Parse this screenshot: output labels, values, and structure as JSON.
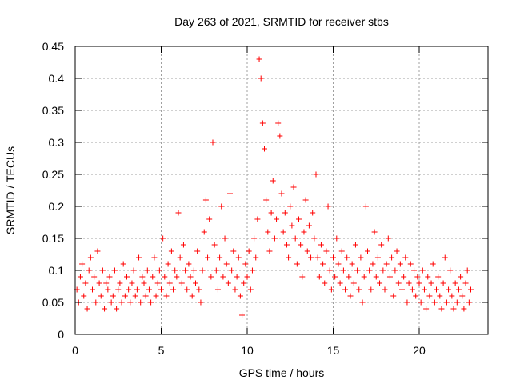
{
  "chart_data": {
    "type": "scatter",
    "title": "Day 263 of 2021, SRMTID for receiver stbs",
    "xlabel": "GPS time / hours",
    "ylabel": "SRMTID / TECUs",
    "xlim": [
      0,
      24
    ],
    "ylim": [
      0,
      0.45
    ],
    "xticks": [
      0,
      5,
      10,
      15,
      20
    ],
    "xtick_labels": [
      "0",
      "5",
      "10",
      "15",
      "20"
    ],
    "yticks": [
      0,
      0.05,
      0.1,
      0.15,
      0.2,
      0.25,
      0.3,
      0.35,
      0.4,
      0.45
    ],
    "ytick_labels": [
      "0",
      "0.05",
      "0.1",
      "0.15",
      "0.2",
      "0.25",
      "0.3",
      "0.35",
      "0.4",
      "0.45"
    ],
    "grid": true,
    "marker": "+",
    "color": "#ff0000",
    "series": [
      {
        "name": "SRMTID",
        "points": [
          [
            0.1,
            0.07
          ],
          [
            0.2,
            0.05
          ],
          [
            0.3,
            0.09
          ],
          [
            0.4,
            0.11
          ],
          [
            0.5,
            0.06
          ],
          [
            0.6,
            0.08
          ],
          [
            0.7,
            0.04
          ],
          [
            0.8,
            0.1
          ],
          [
            0.9,
            0.12
          ],
          [
            1.0,
            0.07
          ],
          [
            1.1,
            0.09
          ],
          [
            1.2,
            0.05
          ],
          [
            1.3,
            0.13
          ],
          [
            1.4,
            0.08
          ],
          [
            1.5,
            0.06
          ],
          [
            1.6,
            0.1
          ],
          [
            1.7,
            0.04
          ],
          [
            1.8,
            0.08
          ],
          [
            1.9,
            0.07
          ],
          [
            2.0,
            0.09
          ],
          [
            2.1,
            0.05
          ],
          [
            2.2,
            0.06
          ],
          [
            2.3,
            0.1
          ],
          [
            2.4,
            0.04
          ],
          [
            2.5,
            0.07
          ],
          [
            2.6,
            0.08
          ],
          [
            2.7,
            0.05
          ],
          [
            2.8,
            0.11
          ],
          [
            2.9,
            0.06
          ],
          [
            3.0,
            0.09
          ],
          [
            3.1,
            0.07
          ],
          [
            3.2,
            0.05
          ],
          [
            3.3,
            0.08
          ],
          [
            3.4,
            0.1
          ],
          [
            3.5,
            0.06
          ],
          [
            3.6,
            0.07
          ],
          [
            3.7,
            0.12
          ],
          [
            3.8,
            0.05
          ],
          [
            3.9,
            0.09
          ],
          [
            4.0,
            0.08
          ],
          [
            4.1,
            0.06
          ],
          [
            4.2,
            0.1
          ],
          [
            4.3,
            0.07
          ],
          [
            4.4,
            0.05
          ],
          [
            4.5,
            0.09
          ],
          [
            4.6,
            0.12
          ],
          [
            4.7,
            0.06
          ],
          [
            4.8,
            0.08
          ],
          [
            4.9,
            0.1
          ],
          [
            5.0,
            0.07
          ],
          [
            5.1,
            0.15
          ],
          [
            5.2,
            0.09
          ],
          [
            5.3,
            0.06
          ],
          [
            5.4,
            0.11
          ],
          [
            5.5,
            0.08
          ],
          [
            5.6,
            0.13
          ],
          [
            5.7,
            0.07
          ],
          [
            5.8,
            0.1
          ],
          [
            5.9,
            0.09
          ],
          [
            6.0,
            0.19
          ],
          [
            6.1,
            0.12
          ],
          [
            6.2,
            0.08
          ],
          [
            6.3,
            0.14
          ],
          [
            6.4,
            0.1
          ],
          [
            6.5,
            0.07
          ],
          [
            6.6,
            0.11
          ],
          [
            6.7,
            0.09
          ],
          [
            6.8,
            0.06
          ],
          [
            6.9,
            0.1
          ],
          [
            7.0,
            0.08
          ],
          [
            7.1,
            0.13
          ],
          [
            7.2,
            0.07
          ],
          [
            7.3,
            0.05
          ],
          [
            7.4,
            0.1
          ],
          [
            7.5,
            0.16
          ],
          [
            7.6,
            0.21
          ],
          [
            7.7,
            0.12
          ],
          [
            7.8,
            0.18
          ],
          [
            7.9,
            0.09
          ],
          [
            8.0,
            0.3
          ],
          [
            8.1,
            0.14
          ],
          [
            8.2,
            0.1
          ],
          [
            8.3,
            0.07
          ],
          [
            8.4,
            0.12
          ],
          [
            8.5,
            0.2
          ],
          [
            8.6,
            0.09
          ],
          [
            8.7,
            0.15
          ],
          [
            8.8,
            0.11
          ],
          [
            8.9,
            0.08
          ],
          [
            9.0,
            0.22
          ],
          [
            9.1,
            0.1
          ],
          [
            9.2,
            0.13
          ],
          [
            9.3,
            0.07
          ],
          [
            9.4,
            0.09
          ],
          [
            9.5,
            0.12
          ],
          [
            9.6,
            0.06
          ],
          [
            9.7,
            0.03
          ],
          [
            9.8,
            0.08
          ],
          [
            9.9,
            0.11
          ],
          [
            10.0,
            0.09
          ],
          [
            10.1,
            0.13
          ],
          [
            10.2,
            0.07
          ],
          [
            10.3,
            0.1
          ],
          [
            10.4,
            0.15
          ],
          [
            10.5,
            0.12
          ],
          [
            10.6,
            0.18
          ],
          [
            10.7,
            0.43
          ],
          [
            10.8,
            0.4
          ],
          [
            10.9,
            0.33
          ],
          [
            11.0,
            0.29
          ],
          [
            11.1,
            0.21
          ],
          [
            11.2,
            0.16
          ],
          [
            11.3,
            0.13
          ],
          [
            11.4,
            0.19
          ],
          [
            11.5,
            0.24
          ],
          [
            11.6,
            0.15
          ],
          [
            11.7,
            0.18
          ],
          [
            11.8,
            0.33
          ],
          [
            11.9,
            0.31
          ],
          [
            12.0,
            0.22
          ],
          [
            12.1,
            0.16
          ],
          [
            12.2,
            0.19
          ],
          [
            12.3,
            0.14
          ],
          [
            12.4,
            0.12
          ],
          [
            12.5,
            0.2
          ],
          [
            12.6,
            0.17
          ],
          [
            12.7,
            0.23
          ],
          [
            12.8,
            0.15
          ],
          [
            12.9,
            0.11
          ],
          [
            13.0,
            0.18
          ],
          [
            13.1,
            0.14
          ],
          [
            13.2,
            0.09
          ],
          [
            13.3,
            0.16
          ],
          [
            13.4,
            0.21
          ],
          [
            13.5,
            0.13
          ],
          [
            13.6,
            0.17
          ],
          [
            13.7,
            0.12
          ],
          [
            13.8,
            0.19
          ],
          [
            13.9,
            0.15
          ],
          [
            14.0,
            0.25
          ],
          [
            14.1,
            0.12
          ],
          [
            14.2,
            0.09
          ],
          [
            14.3,
            0.14
          ],
          [
            14.4,
            0.11
          ],
          [
            14.5,
            0.08
          ],
          [
            14.6,
            0.13
          ],
          [
            14.7,
            0.2
          ],
          [
            14.8,
            0.1
          ],
          [
            14.9,
            0.07
          ],
          [
            15.0,
            0.12
          ],
          [
            15.1,
            0.09
          ],
          [
            15.2,
            0.15
          ],
          [
            15.3,
            0.11
          ],
          [
            15.4,
            0.08
          ],
          [
            15.5,
            0.13
          ],
          [
            15.6,
            0.1
          ],
          [
            15.7,
            0.07
          ],
          [
            15.8,
            0.12
          ],
          [
            15.9,
            0.09
          ],
          [
            16.0,
            0.06
          ],
          [
            16.1,
            0.11
          ],
          [
            16.2,
            0.08
          ],
          [
            16.3,
            0.14
          ],
          [
            16.4,
            0.1
          ],
          [
            16.5,
            0.07
          ],
          [
            16.6,
            0.12
          ],
          [
            16.7,
            0.05
          ],
          [
            16.8,
            0.09
          ],
          [
            16.9,
            0.2
          ],
          [
            17.0,
            0.13
          ],
          [
            17.1,
            0.1
          ],
          [
            17.2,
            0.07
          ],
          [
            17.3,
            0.11
          ],
          [
            17.4,
            0.16
          ],
          [
            17.5,
            0.09
          ],
          [
            17.6,
            0.12
          ],
          [
            17.7,
            0.08
          ],
          [
            17.8,
            0.14
          ],
          [
            17.9,
            0.1
          ],
          [
            18.0,
            0.07
          ],
          [
            18.1,
            0.11
          ],
          [
            18.2,
            0.15
          ],
          [
            18.3,
            0.09
          ],
          [
            18.4,
            0.12
          ],
          [
            18.5,
            0.06
          ],
          [
            18.6,
            0.1
          ],
          [
            18.7,
            0.13
          ],
          [
            18.8,
            0.08
          ],
          [
            18.9,
            0.11
          ],
          [
            19.0,
            0.07
          ],
          [
            19.1,
            0.09
          ],
          [
            19.2,
            0.12
          ],
          [
            19.3,
            0.05
          ],
          [
            19.4,
            0.08
          ],
          [
            19.5,
            0.11
          ],
          [
            19.6,
            0.07
          ],
          [
            19.7,
            0.1
          ],
          [
            19.8,
            0.06
          ],
          [
            19.9,
            0.09
          ],
          [
            20.0,
            0.08
          ],
          [
            20.1,
            0.05
          ],
          [
            20.2,
            0.1
          ],
          [
            20.3,
            0.07
          ],
          [
            20.4,
            0.04
          ],
          [
            20.5,
            0.09
          ],
          [
            20.6,
            0.06
          ],
          [
            20.7,
            0.08
          ],
          [
            20.8,
            0.11
          ],
          [
            20.9,
            0.05
          ],
          [
            21.0,
            0.07
          ],
          [
            21.1,
            0.09
          ],
          [
            21.2,
            0.06
          ],
          [
            21.3,
            0.04
          ],
          [
            21.4,
            0.08
          ],
          [
            21.5,
            0.12
          ],
          [
            21.6,
            0.05
          ],
          [
            21.7,
            0.07
          ],
          [
            21.8,
            0.1
          ],
          [
            21.9,
            0.06
          ],
          [
            22.0,
            0.04
          ],
          [
            22.1,
            0.08
          ],
          [
            22.2,
            0.05
          ],
          [
            22.3,
            0.07
          ],
          [
            22.4,
            0.09
          ],
          [
            22.5,
            0.06
          ],
          [
            22.6,
            0.04
          ],
          [
            22.7,
            0.08
          ],
          [
            22.8,
            0.1
          ],
          [
            22.9,
            0.05
          ],
          [
            23.0,
            0.07
          ]
        ]
      }
    ]
  }
}
